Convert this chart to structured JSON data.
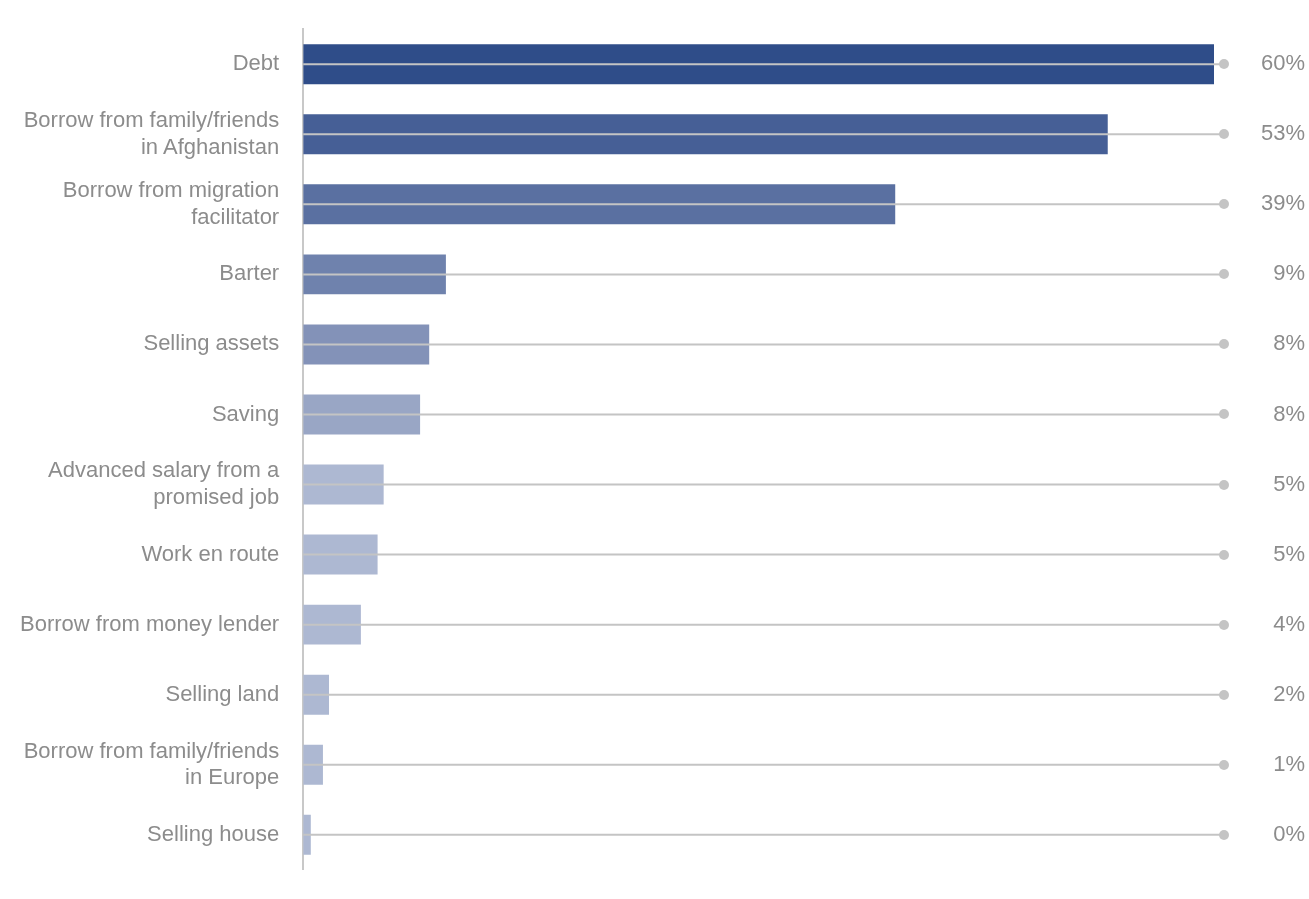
{
  "chart_data": {
    "type": "bar",
    "orientation": "horizontal",
    "categories": [
      "Debt",
      "Borrow from family/friends in Afghanistan",
      "Borrow from migration facilitator",
      "Barter",
      "Selling assets",
      "Saving",
      "Advanced salary from a promised job",
      "Work en route",
      "Borrow from money lender",
      "Selling land",
      "Borrow from family/friends in Europe",
      "Selling house"
    ],
    "values": [
      60,
      53,
      39,
      9.4,
      8.3,
      7.7,
      5.3,
      4.9,
      3.8,
      1.7,
      1.3,
      0.5
    ],
    "value_labels": [
      "60%",
      "53%",
      "39%",
      "9%",
      "8%",
      "8%",
      "5%",
      "5%",
      "4%",
      "2%",
      "1%",
      "0%"
    ],
    "colors": [
      "#2f4d89",
      "#465f96",
      "#5a70a1",
      "#6f82ad",
      "#8392b8",
      "#99a6c5",
      "#adb8d2",
      "#adb8d2",
      "#adb8d2",
      "#adb8d2",
      "#adb8d2",
      "#adb8d2"
    ],
    "grid": "y",
    "legend": false
  }
}
